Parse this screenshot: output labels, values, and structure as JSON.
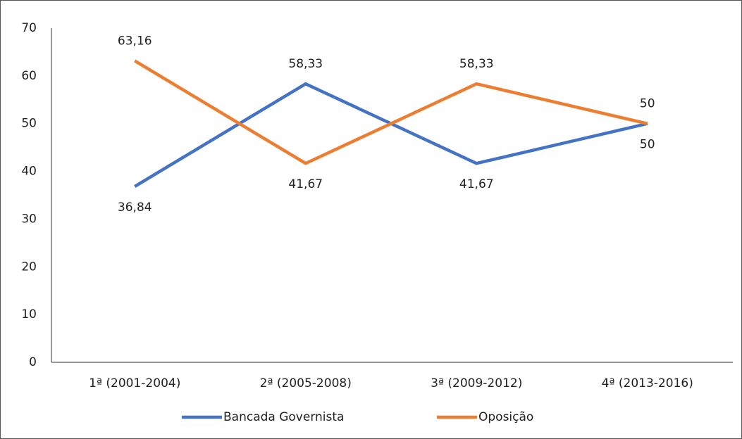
{
  "chart_data": {
    "type": "line",
    "categories": [
      "1ª (2001-2004)",
      "2ª (2005-2008)",
      "3ª (2009-2012)",
      "4ª (2013-2016)"
    ],
    "series": [
      {
        "name": "Bancada Governista",
        "color": "#4472c4",
        "values": [
          36.84,
          58.33,
          41.67,
          50
        ],
        "value_labels": [
          "36,84",
          "58,33",
          "41,67",
          "50"
        ]
      },
      {
        "name": "Oposição",
        "color": "#ed7d31",
        "values": [
          63.16,
          41.67,
          58.33,
          50
        ],
        "value_labels": [
          "63,16",
          "41,67",
          "58,33",
          "50"
        ]
      }
    ],
    "ylim": [
      0,
      70
    ],
    "yticks": [
      0,
      10,
      20,
      30,
      40,
      50,
      60,
      70
    ],
    "grid": false,
    "legend": "bottom"
  }
}
